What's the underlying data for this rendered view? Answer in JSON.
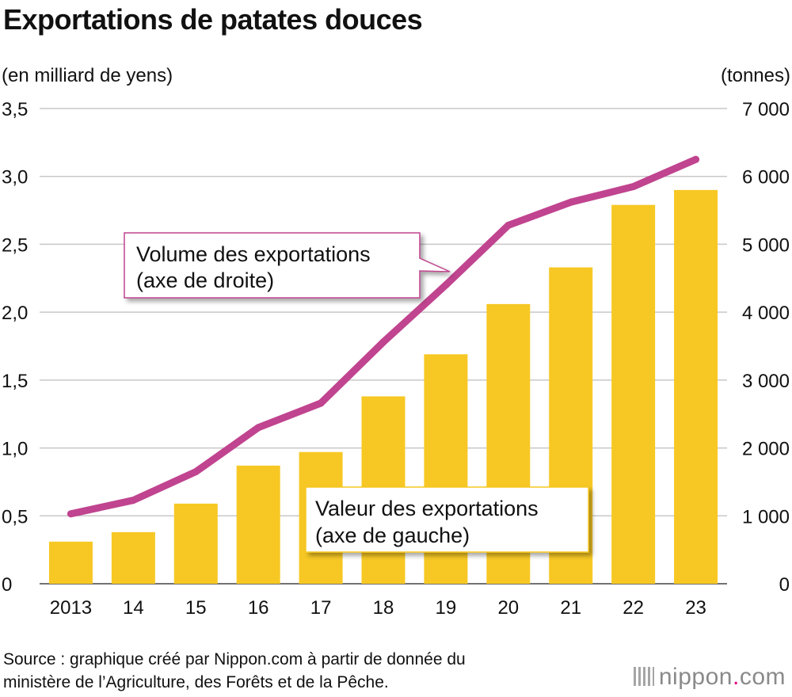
{
  "title": "Exportations de patates douces",
  "left_unit": "(en milliard de yens)",
  "right_unit": "(tonnes)",
  "source": {
    "line1": "Source : graphique créé par Nippon.com à partir de donnée du",
    "line2": "ministère de l’Agriculture, des Forêts et de la Pêche."
  },
  "logo": {
    "name": "nippon",
    "dot": ".",
    "suffix": "com"
  },
  "chart_data": {
    "type": "bar+line",
    "title": "Exportations de patates douces",
    "categories": [
      "2013",
      "14",
      "15",
      "16",
      "17",
      "18",
      "19",
      "20",
      "21",
      "22",
      "23"
    ],
    "y_left": {
      "label": "(en milliard de yens)",
      "range": [
        0,
        3.5
      ],
      "ticks": [
        0,
        0.5,
        1.0,
        1.5,
        2.0,
        2.5,
        3.0,
        3.5
      ],
      "tick_labels": [
        "0",
        "0,5",
        "1,0",
        "1,5",
        "2,0",
        "2,5",
        "3,0",
        "3,5"
      ]
    },
    "y_right": {
      "label": "(tonnes)",
      "range": [
        0,
        7000
      ],
      "ticks": [
        0,
        1000,
        2000,
        3000,
        4000,
        5000,
        6000,
        7000
      ],
      "tick_labels": [
        "0",
        "1 000",
        "2 000",
        "3 000",
        "4 000",
        "5 000",
        "6 000",
        "7 000"
      ]
    },
    "series": [
      {
        "name": "Valeur des exportations",
        "annotation": [
          "Valeur des exportations",
          "(axe de gauche)"
        ],
        "type": "bar",
        "axis": "left",
        "color": "#f7c824",
        "values": [
          0.31,
          0.38,
          0.59,
          0.87,
          0.97,
          1.38,
          1.69,
          2.06,
          2.33,
          2.79,
          2.9
        ]
      },
      {
        "name": "Volume des exportations",
        "annotation": [
          "Volume des exportations",
          "(axe de droite)"
        ],
        "type": "line",
        "axis": "right",
        "color": "#c0448f",
        "values": [
          1030,
          1230,
          1650,
          2300,
          2660,
          3560,
          4400,
          5280,
          5620,
          5850,
          6250
        ]
      }
    ],
    "grid": true
  }
}
